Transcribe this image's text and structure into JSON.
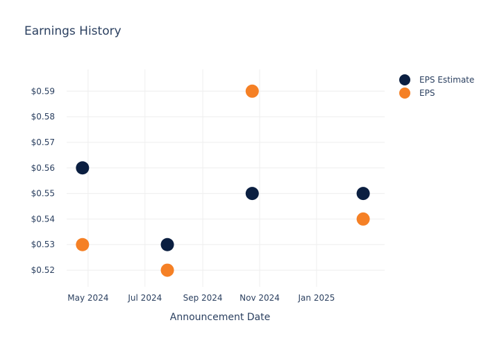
{
  "chart_data": {
    "type": "scatter",
    "title": "Earnings History",
    "xlabel": "Announcement Date",
    "ylabel": "",
    "x_ticks": [
      "May 2024",
      "Jul 2024",
      "Sep 2024",
      "Nov 2024",
      "Jan 2025"
    ],
    "x_tick_dates": [
      "2024-05-01",
      "2024-07-01",
      "2024-09-01",
      "2024-11-01",
      "2025-01-01"
    ],
    "xlim": [
      "2024-04-08",
      "2025-03-15"
    ],
    "y_ticks": [
      "$0.52",
      "$0.53",
      "$0.54",
      "$0.55",
      "$0.56",
      "$0.57",
      "$0.58",
      "$0.59"
    ],
    "y_tick_values": [
      0.52,
      0.53,
      0.54,
      0.55,
      0.56,
      0.57,
      0.58,
      0.59
    ],
    "ylim": [
      0.5135,
      0.5985
    ],
    "grid": true,
    "legend_position": "top-right",
    "series": [
      {
        "name": "EPS Estimate",
        "color": "#0b1f41",
        "points": [
          {
            "x": "2024-04-25",
            "y": 0.56
          },
          {
            "x": "2024-07-25",
            "y": 0.53
          },
          {
            "x": "2024-10-24",
            "y": 0.55
          },
          {
            "x": "2025-02-20",
            "y": 0.55
          }
        ]
      },
      {
        "name": "EPS",
        "color": "#f58025",
        "points": [
          {
            "x": "2024-04-25",
            "y": 0.53
          },
          {
            "x": "2024-07-25",
            "y": 0.52
          },
          {
            "x": "2024-10-24",
            "y": 0.59
          },
          {
            "x": "2025-02-20",
            "y": 0.54
          }
        ]
      }
    ]
  },
  "colors": {
    "text": "#2a3f5f",
    "grid": "#eeeeee",
    "background": "#ffffff"
  }
}
